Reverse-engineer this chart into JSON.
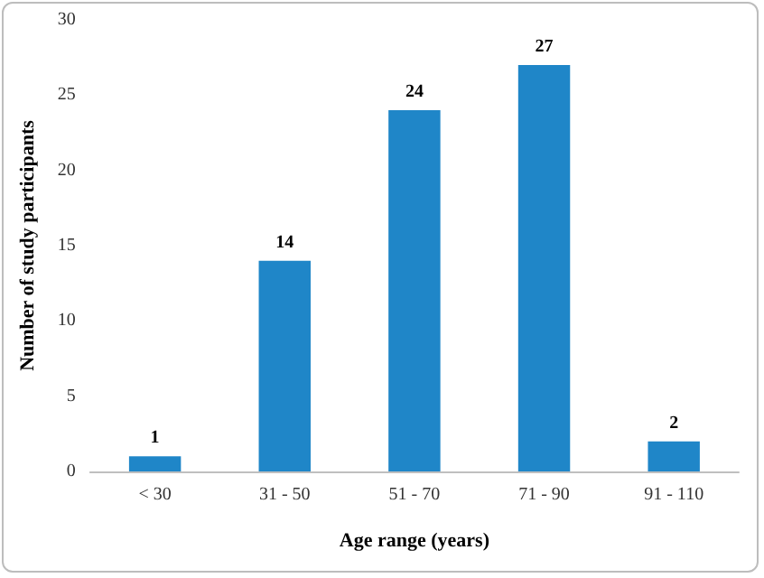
{
  "chart_data": {
    "type": "bar",
    "xlabel": "Age range (years)",
    "ylabel": "Number of study participants",
    "categories": [
      "< 30",
      "31 - 50",
      "51 - 70",
      "71 - 90",
      "91 - 110"
    ],
    "values": [
      1,
      14,
      24,
      27,
      2
    ],
    "color": "#1f86c8",
    "ylim": [
      0,
      30
    ],
    "yticks": [
      0,
      5,
      10,
      15,
      20,
      25,
      30
    ],
    "grid": false,
    "data_labels": true
  }
}
